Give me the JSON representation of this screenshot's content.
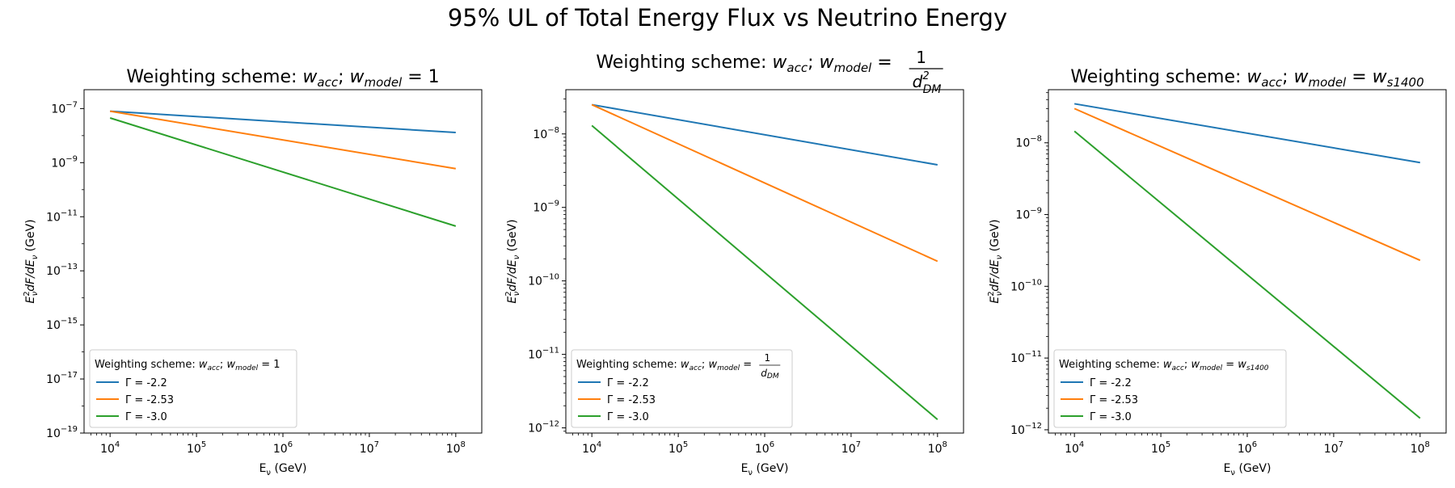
{
  "figure": {
    "suptitle": "95% UL of Total Energy Flux vs Neutrino Energy"
  },
  "chart_data": [
    {
      "type": "line",
      "title": "Weighting scheme: w_acc; w_model = 1",
      "title_parts": {
        "prefix": "Weighting scheme: ",
        "model_value": "1"
      },
      "xlabel": "E_ν (GeV)",
      "ylabel": "E_ν^2 dF/dE_ν (GeV)",
      "xscale": "log",
      "yscale": "log",
      "xlim": [
        5000,
        200000000
      ],
      "ylim": [
        1e-19,
        5e-07
      ],
      "xticks": [
        10000,
        100000,
        1000000,
        10000000,
        100000000
      ],
      "xtick_labels": [
        "10^4",
        "10^5",
        "10^6",
        "10^7",
        "10^8"
      ],
      "yticks": [
        1e-19,
        1e-17,
        1e-15,
        1e-13,
        1e-11,
        1e-09,
        1e-07
      ],
      "ytick_labels": [
        "10^-19",
        "10^-17",
        "10^-15",
        "10^-13",
        "10^-11",
        "10^-9",
        "10^-7"
      ],
      "grid": false,
      "legend": {
        "placement": "lower-left",
        "title": "Weighting scheme: w_acc; w_model = 1"
      },
      "series": [
        {
          "name": "Γ = -2.2",
          "color": "#1f77b4",
          "x": [
            10000,
            100000000
          ],
          "y": [
            8e-08,
            1.3e-08
          ]
        },
        {
          "name": "Γ = -2.53",
          "color": "#ff7f0e",
          "x": [
            10000,
            100000000
          ],
          "y": [
            8e-08,
            6e-10
          ]
        },
        {
          "name": "Γ = -3.0",
          "color": "#2ca02c",
          "x": [
            10000,
            100000000
          ],
          "y": [
            4.5e-08,
            4.5e-12
          ]
        }
      ]
    },
    {
      "type": "line",
      "title": "Weighting scheme: w_acc; w_model = 1/d_DM^2",
      "title_parts": {
        "prefix": "Weighting scheme: ",
        "model_value": "1/d_DM^2"
      },
      "xlabel": "E_ν (GeV)",
      "ylabel": "E_ν^2 dF/dE_ν (GeV)",
      "xscale": "log",
      "yscale": "log",
      "xlim": [
        5000,
        200000000
      ],
      "ylim": [
        8.5e-13,
        4e-08
      ],
      "xticks": [
        10000,
        100000,
        1000000,
        10000000,
        100000000
      ],
      "xtick_labels": [
        "10^4",
        "10^5",
        "10^6",
        "10^7",
        "10^8"
      ],
      "yticks": [
        1e-12,
        1e-11,
        1e-10,
        1e-09,
        1e-08
      ],
      "ytick_labels": [
        "10^-12",
        "10^-11",
        "10^-10",
        "10^-9",
        "10^-8"
      ],
      "grid": false,
      "legend": {
        "placement": "lower-left",
        "title": "Weighting scheme: w_acc; w_model = 1/d_DM^2"
      },
      "series": [
        {
          "name": "Γ = -2.2",
          "color": "#1f77b4",
          "x": [
            10000,
            100000000
          ],
          "y": [
            2.5e-08,
            3.8e-09
          ]
        },
        {
          "name": "Γ = -2.53",
          "color": "#ff7f0e",
          "x": [
            10000,
            100000000
          ],
          "y": [
            2.5e-08,
            1.85e-10
          ]
        },
        {
          "name": "Γ = -3.0",
          "color": "#2ca02c",
          "x": [
            10000,
            100000000
          ],
          "y": [
            1.3e-08,
            1.3e-12
          ]
        }
      ]
    },
    {
      "type": "line",
      "title": "Weighting scheme: w_acc; w_model = w_s1400",
      "title_parts": {
        "prefix": "Weighting scheme: ",
        "model_value": "w_s1400"
      },
      "xlabel": "E_ν (GeV)",
      "ylabel": "E_ν^2 dF/dE_ν (GeV)",
      "xscale": "log",
      "yscale": "log",
      "xlim": [
        5000,
        200000000
      ],
      "ylim": [
        9e-13,
        5.5e-08
      ],
      "xticks": [
        10000,
        100000,
        1000000,
        10000000,
        100000000
      ],
      "xtick_labels": [
        "10^4",
        "10^5",
        "10^6",
        "10^7",
        "10^8"
      ],
      "yticks": [
        1e-12,
        1e-11,
        1e-10,
        1e-09,
        1e-08
      ],
      "ytick_labels": [
        "10^-12",
        "10^-11",
        "10^-10",
        "10^-9",
        "10^-8"
      ],
      "grid": false,
      "legend": {
        "placement": "lower-left",
        "title": "Weighting scheme: w_acc; w_model = w_s1400"
      },
      "series": [
        {
          "name": "Γ = -2.2",
          "color": "#1f77b4",
          "x": [
            10000,
            100000000
          ],
          "y": [
            3.5e-08,
            5.3e-09
          ]
        },
        {
          "name": "Γ = -2.53",
          "color": "#ff7f0e",
          "x": [
            10000,
            100000000
          ],
          "y": [
            3e-08,
            2.3e-10
          ]
        },
        {
          "name": "Γ = -3.0",
          "color": "#2ca02c",
          "x": [
            10000,
            100000000
          ],
          "y": [
            1.45e-08,
            1.45e-12
          ]
        }
      ]
    }
  ]
}
